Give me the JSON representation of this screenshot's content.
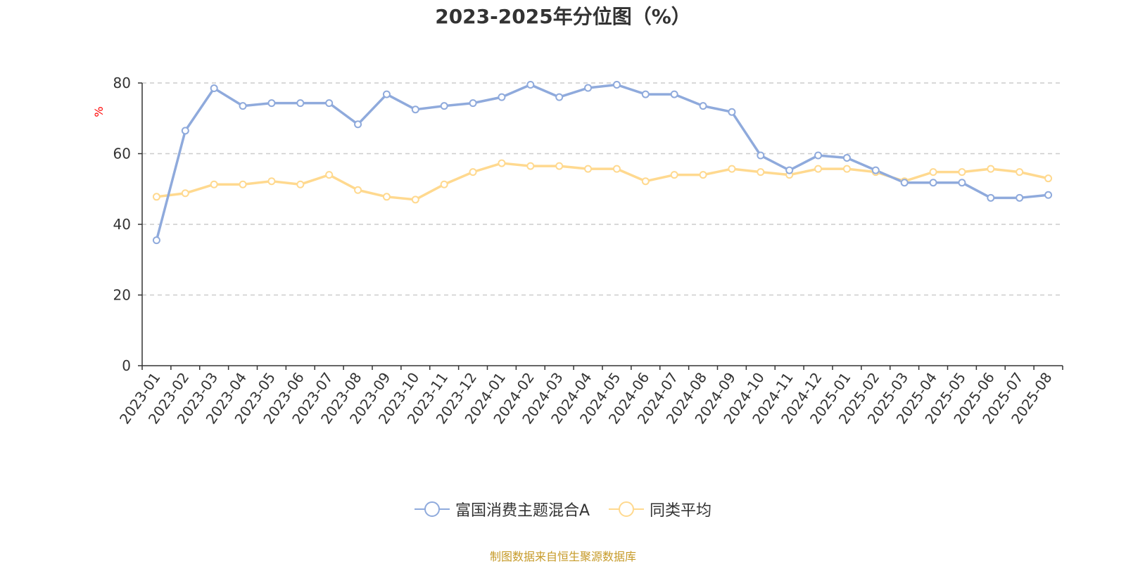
{
  "colors": {
    "series_1": "#8FAADC",
    "series_2": "#FFD98F",
    "grid": "#CCCCCC",
    "axis": "#333333",
    "ylabel": "#FF0000",
    "source": "#C69A28"
  },
  "legend": {
    "placement": "bottom-center",
    "items": [
      {
        "label": "富国消费主题混合A",
        "icon": "circle-marker-icon"
      },
      {
        "label": "同类平均",
        "icon": "circle-marker-icon"
      }
    ]
  },
  "source_note": "制图数据来自恒生聚源数据库",
  "chart_data": {
    "type": "line",
    "title": "2023-2025年分位图（%）",
    "xlabel": "",
    "ylabel": "%",
    "ylim": [
      0,
      80
    ],
    "yticks": [
      0,
      20,
      40,
      60,
      80
    ],
    "grid": true,
    "categories": [
      "2023-01",
      "2023-02",
      "2023-03",
      "2023-04",
      "2023-05",
      "2023-06",
      "2023-07",
      "2023-08",
      "2023-09",
      "2023-10",
      "2023-11",
      "2023-12",
      "2024-01",
      "2024-02",
      "2024-03",
      "2024-04",
      "2024-05",
      "2024-06",
      "2024-07",
      "2024-08",
      "2024-09",
      "2024-10",
      "2024-11",
      "2024-12",
      "2025-01",
      "2025-02",
      "2025-03",
      "2025-04",
      "2025-05",
      "2025-06",
      "2025-07",
      "2025-08"
    ],
    "series": [
      {
        "name": "富国消费主题混合A",
        "values": [
          35.5,
          66.5,
          78.5,
          73.5,
          74.3,
          74.3,
          74.3,
          68.3,
          76.8,
          72.5,
          73.5,
          74.3,
          76.0,
          79.5,
          76.0,
          78.6,
          79.5,
          76.8,
          76.8,
          73.5,
          71.8,
          59.5,
          55.3,
          59.5,
          58.8,
          55.3,
          51.8,
          51.8,
          51.8,
          47.5,
          47.5,
          48.3
        ]
      },
      {
        "name": "同类平均",
        "values": [
          47.8,
          48.8,
          51.3,
          51.3,
          52.2,
          51.3,
          54.0,
          49.7,
          47.8,
          47.0,
          51.3,
          54.8,
          57.3,
          56.5,
          56.5,
          55.7,
          55.7,
          52.2,
          54.0,
          54.0,
          55.7,
          54.8,
          54.0,
          55.7,
          55.7,
          54.8,
          52.2,
          54.8,
          54.8,
          55.7,
          54.8,
          53.0
        ]
      }
    ]
  }
}
